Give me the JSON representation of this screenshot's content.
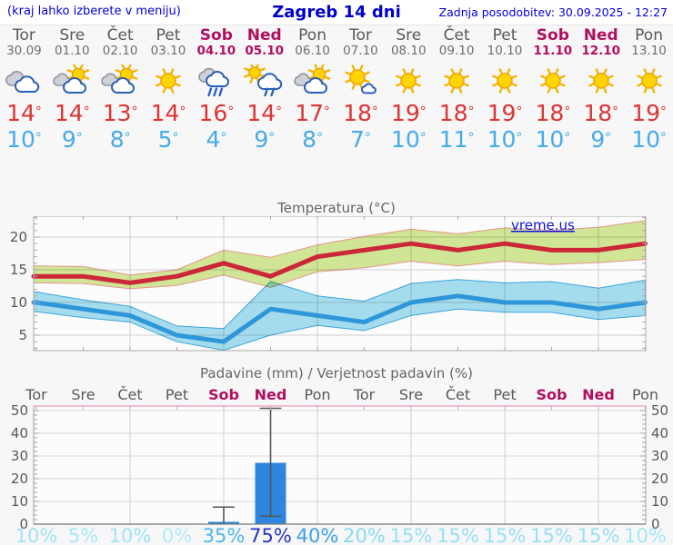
{
  "header": {
    "left_note": "(kraj lahko izberete v meniju)",
    "title": "Zagreb 14 dni",
    "updated": "Zadnja posodobitev: 30.09.2025 - 12:27"
  },
  "degree_symbol": "°",
  "watermark": "vreme.us",
  "days": [
    {
      "name": "Tor",
      "date": "30.09",
      "weekend": false,
      "icon": "clouds-icon",
      "high": 14,
      "low": 10
    },
    {
      "name": "Sre",
      "date": "01.10",
      "weekend": false,
      "icon": "sun-behind-cloud-icon",
      "high": 14,
      "low": 9
    },
    {
      "name": "Čet",
      "date": "02.10",
      "weekend": false,
      "icon": "sun-behind-cloud-icon",
      "high": 13,
      "low": 8
    },
    {
      "name": "Pet",
      "date": "03.10",
      "weekend": false,
      "icon": "sun-icon",
      "high": 14,
      "low": 5
    },
    {
      "name": "Sob",
      "date": "04.10",
      "weekend": true,
      "icon": "rain-cloud-icon",
      "high": 16,
      "low": 4
    },
    {
      "name": "Ned",
      "date": "05.10",
      "weekend": true,
      "icon": "sun-rain-icon",
      "high": 14,
      "low": 9
    },
    {
      "name": "Pon",
      "date": "06.10",
      "weekend": false,
      "icon": "sun-behind-cloud-icon",
      "high": 17,
      "low": 8
    },
    {
      "name": "Tor",
      "date": "07.10",
      "weekend": false,
      "icon": "sun-small-cloud-icon",
      "high": 18,
      "low": 7
    },
    {
      "name": "Sre",
      "date": "08.10",
      "weekend": false,
      "icon": "sun-icon",
      "high": 19,
      "low": 10
    },
    {
      "name": "Čet",
      "date": "09.10",
      "weekend": false,
      "icon": "sun-icon",
      "high": 18,
      "low": 11
    },
    {
      "name": "Pet",
      "date": "10.10",
      "weekend": false,
      "icon": "sun-icon",
      "high": 19,
      "low": 10
    },
    {
      "name": "Sob",
      "date": "11.10",
      "weekend": true,
      "icon": "sun-icon",
      "high": 18,
      "low": 10
    },
    {
      "name": "Ned",
      "date": "12.10",
      "weekend": true,
      "icon": "sun-icon",
      "high": 18,
      "low": 9
    },
    {
      "name": "Pon",
      "date": "13.10",
      "weekend": false,
      "icon": "sun-icon",
      "high": 19,
      "low": 10
    }
  ],
  "chart_data": [
    {
      "type": "line",
      "title": "Temperatura (°C)",
      "categories": [
        "Tor",
        "Sre",
        "Čet",
        "Pet",
        "Sob",
        "Ned",
        "Pon",
        "Tor",
        "Sre",
        "Čet",
        "Pet",
        "Sob",
        "Ned",
        "Pon"
      ],
      "ylim": [
        2.5,
        23.2
      ],
      "yticks": [
        5,
        10,
        15,
        20
      ],
      "grid": true,
      "series": [
        {
          "name": "max-temp",
          "kind": "line",
          "color": "#cb2739",
          "values": [
            14,
            14,
            13,
            14,
            16,
            14,
            17,
            18,
            19,
            18,
            19,
            18,
            18,
            19
          ]
        },
        {
          "name": "max-temp-range",
          "kind": "band",
          "fill": "#d3e897",
          "edge": "#e8988f",
          "upper": [
            15.6,
            15.5,
            14.2,
            15.0,
            18.0,
            16.9,
            18.8,
            20.1,
            21.2,
            20.5,
            21.4,
            21.0,
            21.5,
            22.5
          ],
          "lower": [
            13.0,
            12.9,
            12.1,
            12.6,
            14.2,
            12.3,
            14.7,
            15.3,
            16.3,
            15.6,
            16.3,
            15.8,
            16.1,
            16.6
          ]
        },
        {
          "name": "min-temp",
          "kind": "line",
          "color": "#2f97d9",
          "values": [
            10,
            9,
            8,
            5,
            4,
            9,
            8,
            7,
            10,
            11,
            10,
            10,
            9,
            10
          ]
        },
        {
          "name": "min-temp-range",
          "kind": "band",
          "fill": "#a7dff0",
          "edge": "#3fa6dc",
          "upper": [
            11.6,
            10.4,
            9.4,
            6.4,
            6.0,
            13.2,
            11.0,
            10.2,
            12.9,
            13.5,
            13.0,
            13.2,
            12.2,
            13.4
          ],
          "lower": [
            8.6,
            7.7,
            7.0,
            4.0,
            2.7,
            5.0,
            6.5,
            5.7,
            8.0,
            9.0,
            8.5,
            8.5,
            7.4,
            8.0
          ]
        }
      ]
    },
    {
      "type": "bar",
      "title": "Padavine (mm) / Verjetnost padavin (%)",
      "categories": [
        "Tor",
        "Sre",
        "Čet",
        "Pet",
        "Sob",
        "Ned",
        "Pon",
        "Tor",
        "Sre",
        "Čet",
        "Pet",
        "Sob",
        "Ned",
        "Pon"
      ],
      "ylim": [
        0,
        52
      ],
      "yticks": [
        0,
        10,
        20,
        30,
        40,
        50
      ],
      "grid": true,
      "bars_mm": [
        0,
        0,
        0,
        0,
        1,
        27,
        0,
        0,
        0,
        0,
        0,
        0,
        0,
        0
      ],
      "whiskers": [
        null,
        null,
        null,
        null,
        {
          "low": 0,
          "high": 7.5
        },
        {
          "low": 3.5,
          "high": 51
        },
        null,
        null,
        null,
        null,
        null,
        null,
        null,
        null
      ],
      "probability_pct": [
        10,
        5,
        10,
        0,
        35,
        75,
        40,
        20,
        15,
        15,
        15,
        15,
        15,
        10
      ],
      "prob_colors": [
        "#9fe3f7",
        "#a8e6f8",
        "#9fe3f7",
        "#b2eaf9",
        "#4cb6ee",
        "#2433c8",
        "#3f9fe8",
        "#86dbf4",
        "#97e0f6",
        "#97e0f6",
        "#97e0f6",
        "#97e0f6",
        "#97e0f6",
        "#a5e5f7"
      ]
    }
  ],
  "palette": {
    "header_blue": "#0000cc",
    "weekday_gray": "#58585a",
    "weekend_crimson": "#b00f60",
    "high_temp_red": "#dd3434",
    "low_temp_blue": "#46abee",
    "bar_blue": "#2f86e0",
    "whisker_gray": "#555555",
    "precip_top_line_pink": "#ee9db8",
    "plot_bg": "#fcfcfc",
    "page_bg": "#f7f7f7",
    "gridline": "#cfcfcf"
  }
}
